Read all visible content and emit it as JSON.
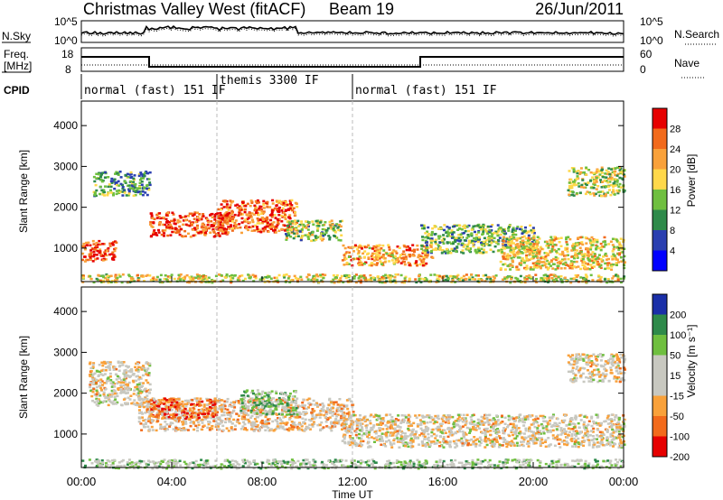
{
  "header": {
    "title": "Christmas Valley West (fitACF)",
    "beam": "Beam 19",
    "date": "26/Jun/2011"
  },
  "top_panels": {
    "nsky_label": "N.Sky",
    "nsky_ticks": [
      "10^5",
      "10^0"
    ],
    "nsearch_label": "N.Search",
    "nsearch_ticks": [
      "10^5",
      "10^0"
    ],
    "freq_label": "Freq.",
    "freq_unit": "[MHz]",
    "freq_ticks": [
      "18",
      "8"
    ],
    "nave_label": "Nave",
    "nave_ticks": [
      "60",
      "0"
    ],
    "cpid_label": "CPID",
    "cpid_segments": [
      "normal (fast) 151 IF",
      "themis 3300 IF",
      "normal (fast) 151 IF"
    ]
  },
  "colors": {
    "scale": [
      "#0000ff",
      "#2a3fb0",
      "#2e8a4a",
      "#6fbf3f",
      "#ffd84a",
      "#f9a13a",
      "#f26a1b",
      "#e60000"
    ],
    "velocity_scale": [
      "#e60000",
      "#f26a1b",
      "#f9a13a",
      "#c8c8c0",
      "#c8c8c0",
      "#6fbf3f",
      "#2e8a4a",
      "#1a2fa8"
    ]
  },
  "chart_data": [
    {
      "type": "heatmap",
      "name": "Power",
      "ylabel": "Slant Range [km]",
      "yticks": [
        "4000",
        "3000",
        "2000",
        "1000"
      ],
      "colorbar_label": "Power [dB]",
      "colorbar_ticks": [
        "28",
        "24",
        "20",
        "16",
        "12",
        "8",
        "4"
      ],
      "xticks": [
        "00:00",
        "04:00",
        "08:00",
        "12:00",
        "16:00",
        "20:00",
        "00:00"
      ],
      "features": [
        {
          "t0": 0.0,
          "t1": 1.5,
          "r0": 700,
          "r1": 1200,
          "level": 0.85
        },
        {
          "t0": 0.5,
          "t1": 3.0,
          "r0": 2300,
          "r1": 2900,
          "level": 0.35
        },
        {
          "t0": 3.0,
          "t1": 6.5,
          "r0": 1300,
          "r1": 1900,
          "level": 0.85
        },
        {
          "t0": 6.0,
          "t1": 9.5,
          "r0": 1400,
          "r1": 2200,
          "level": 0.8
        },
        {
          "t0": 9.0,
          "t1": 11.5,
          "r0": 1200,
          "r1": 1700,
          "level": 0.45
        },
        {
          "t0": 11.5,
          "t1": 15.5,
          "r0": 600,
          "r1": 1100,
          "level": 0.7
        },
        {
          "t0": 15.0,
          "t1": 20.0,
          "r0": 900,
          "r1": 1600,
          "level": 0.4
        },
        {
          "t0": 18.5,
          "t1": 24.0,
          "r0": 500,
          "r1": 1300,
          "level": 0.6
        },
        {
          "t0": 21.5,
          "t1": 24.0,
          "r0": 2300,
          "r1": 3000,
          "level": 0.5
        },
        {
          "t0": 0.0,
          "t1": 24.0,
          "r0": 180,
          "r1": 380,
          "level": 0.55
        }
      ]
    },
    {
      "type": "heatmap",
      "name": "Velocity",
      "ylabel": "Slant Range [km]",
      "yticks": [
        "4000",
        "3000",
        "2000",
        "1000"
      ],
      "colorbar_label": "Velocity [m s⁻¹]",
      "colorbar_ticks": [
        "200",
        "100",
        "50",
        "15",
        "-15",
        "-50",
        "-100",
        "-200"
      ],
      "xticks": [
        "00:00",
        "04:00",
        "08:00",
        "12:00",
        "16:00",
        "20:00",
        "00:00"
      ],
      "xlabel": "Time UT",
      "features": [
        {
          "t0": 0.3,
          "t1": 3.0,
          "r0": 1700,
          "r1": 2800,
          "level": 0.45
        },
        {
          "t0": 2.5,
          "t1": 12.0,
          "r0": 1100,
          "r1": 1900,
          "level": 0.4
        },
        {
          "t0": 3.0,
          "t1": 6.0,
          "r0": 1400,
          "r1": 1900,
          "level": 0.2
        },
        {
          "t0": 7.0,
          "t1": 9.5,
          "r0": 1500,
          "r1": 2100,
          "level": 0.65
        },
        {
          "t0": 11.5,
          "t1": 24.0,
          "r0": 700,
          "r1": 1500,
          "level": 0.45
        },
        {
          "t0": 0.0,
          "t1": 24.0,
          "r0": 180,
          "r1": 400,
          "level": 0.6
        },
        {
          "t0": 21.5,
          "t1": 24.0,
          "r0": 2300,
          "r1": 3000,
          "level": 0.45
        }
      ]
    }
  ]
}
